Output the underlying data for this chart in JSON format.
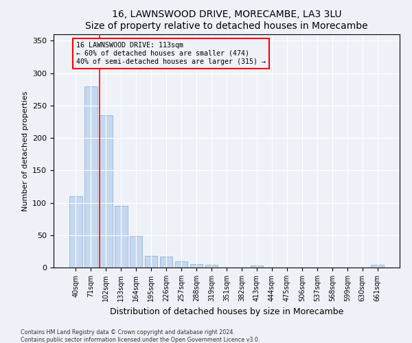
{
  "title1": "16, LAWNSWOOD DRIVE, MORECAMBE, LA3 3LU",
  "title2": "Size of property relative to detached houses in Morecambe",
  "xlabel": "Distribution of detached houses by size in Morecambe",
  "ylabel": "Number of detached properties",
  "footnote1": "Contains HM Land Registry data © Crown copyright and database right 2024.",
  "footnote2": "Contains public sector information licensed under the Open Government Licence v3.0.",
  "categories": [
    "40sqm",
    "71sqm",
    "102sqm",
    "133sqm",
    "164sqm",
    "195sqm",
    "226sqm",
    "257sqm",
    "288sqm",
    "319sqm",
    "351sqm",
    "382sqm",
    "413sqm",
    "444sqm",
    "475sqm",
    "506sqm",
    "537sqm",
    "568sqm",
    "599sqm",
    "630sqm",
    "661sqm"
  ],
  "values": [
    110,
    280,
    235,
    95,
    49,
    18,
    17,
    10,
    5,
    4,
    0,
    0,
    3,
    0,
    0,
    0,
    0,
    0,
    0,
    0,
    4
  ],
  "bar_color": "#c5d8f0",
  "bar_edge_color": "#a0b8d8",
  "annotation_line1": "16 LAWNSWOOD DRIVE: 113sqm",
  "annotation_line2": "← 60% of detached houses are smaller (474)",
  "annotation_line3": "40% of semi-detached houses are larger (315) →",
  "red_line_x": 1.575,
  "background_color": "#eef2f8",
  "plot_bg_color": "#eef2f8",
  "ylim": [
    0,
    360
  ],
  "yticks": [
    0,
    50,
    100,
    150,
    200,
    250,
    300,
    350
  ]
}
